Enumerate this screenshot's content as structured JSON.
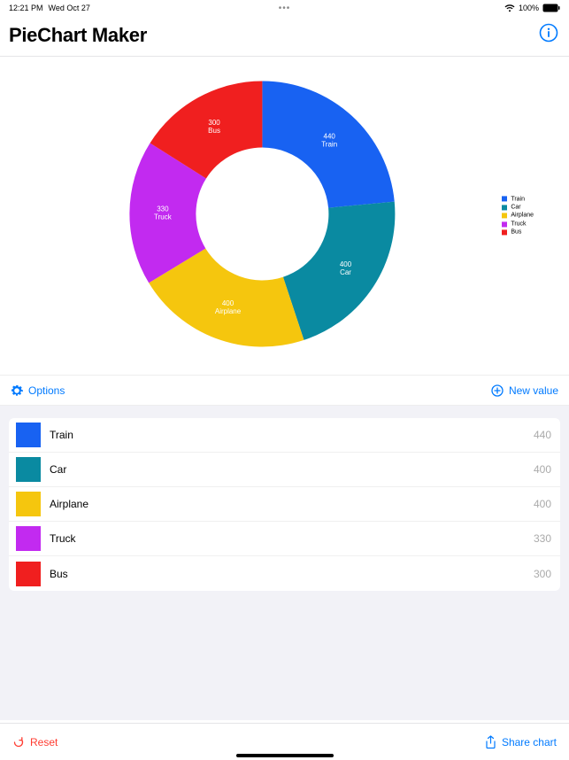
{
  "statusbar": {
    "time": "12:21 PM",
    "date": "Wed Oct 27",
    "battery_pct": "100%"
  },
  "header": {
    "title": "PieChart Maker"
  },
  "chart": {
    "type": "donut",
    "outer_radius": 150,
    "inner_radius": 75,
    "inner_ring_opacity": 0.25,
    "background_color": "#ffffff",
    "label_color": "#ffffff",
    "label_fontsize": 8,
    "slices": [
      {
        "label": "Train",
        "value": 440,
        "color": "#1862f2"
      },
      {
        "label": "Car",
        "value": 400,
        "color": "#0a8aa1"
      },
      {
        "label": "Airplane",
        "value": 400,
        "color": "#f5c60e"
      },
      {
        "label": "Truck",
        "value": 330,
        "color": "#c22af0"
      },
      {
        "label": "Bus",
        "value": 300,
        "color": "#f01f1f"
      }
    ]
  },
  "actions": {
    "options_label": "Options",
    "new_value_label": "New value",
    "reset_label": "Reset",
    "share_label": "Share chart"
  },
  "list": {
    "items": [
      {
        "label": "Train",
        "value": "440",
        "color": "#1862f2"
      },
      {
        "label": "Car",
        "value": "400",
        "color": "#0a8aa1"
      },
      {
        "label": "Airplane",
        "value": "400",
        "color": "#f5c60e"
      },
      {
        "label": "Truck",
        "value": "330",
        "color": "#c22af0"
      },
      {
        "label": "Bus",
        "value": "300",
        "color": "#f01f1f"
      }
    ]
  },
  "colors": {
    "accent": "#007aff",
    "destructive": "#ff3b30",
    "list_bg": "#f2f2f7"
  }
}
